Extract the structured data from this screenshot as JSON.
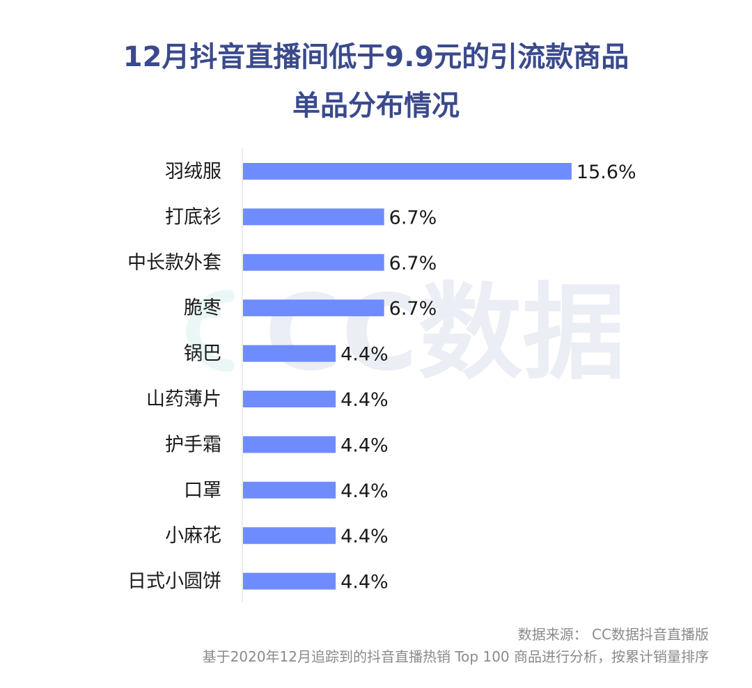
{
  "chart_data": {
    "type": "bar",
    "orientation": "horizontal",
    "title": [
      "12月抖音直播间低于9.9元的引流款商品",
      "单品分布情况"
    ],
    "categories": [
      "羽绒服",
      "打底衫",
      "中长款外套",
      "脆枣",
      "锅巴",
      "山药薄片",
      "护手霜",
      "口罩",
      "小麻花",
      "日式小圆饼"
    ],
    "values": [
      15.6,
      6.7,
      6.7,
      6.7,
      4.4,
      4.4,
      4.4,
      4.4,
      4.4,
      4.4
    ],
    "value_labels": [
      "15.6%",
      "6.7%",
      "6.7%",
      "6.7%",
      "4.4%",
      "4.4%",
      "4.4%",
      "4.4%",
      "4.4%",
      "4.4%"
    ],
    "xlim": [
      0,
      16
    ],
    "grid": false,
    "legend": "none",
    "bar_color": "#6f8cff"
  },
  "watermark": {
    "text": "CC数据"
  },
  "source": {
    "line1": "数据来源： CC数据抖音直播版",
    "line2": "基于2020年12月追踪到的抖音直播热销 Top 100 商品进行分析，按累计销量排序"
  },
  "colors": {
    "title": "#3a4a8c",
    "axis": "#e6e6e6",
    "text": "#1a1a1a",
    "source": "#8a8a8a"
  }
}
